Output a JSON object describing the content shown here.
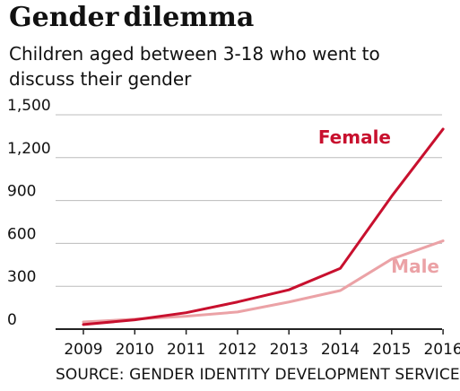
{
  "header": {
    "title_part1": "Gender",
    "title_part2": "dilemma",
    "subtitle": "Children aged between 3-18 who went to\ndiscuss their gender"
  },
  "footer": {
    "source": "SOURCE: GENDER IDENTITY DEVELOPMENT SERVICE"
  },
  "colors": {
    "female": "#c8102e",
    "male": "#eba2a6",
    "grid": "#bcbcbc",
    "axis": "#222222"
  },
  "chart_data": {
    "type": "line",
    "title": "Gender dilemma",
    "subtitle": "Children aged between 3-18 who went to discuss their gender",
    "xlabel": "",
    "ylabel": "",
    "x": [
      "2009",
      "2010",
      "2011",
      "2012",
      "2013",
      "2014",
      "2015",
      "2016"
    ],
    "ylim": [
      0,
      1500
    ],
    "yticks": [
      0,
      300,
      600,
      900,
      1200,
      1500
    ],
    "ytick_labels": [
      "0",
      "300",
      "600",
      "900",
      "1,200",
      "1,500"
    ],
    "grid": true,
    "series": [
      {
        "name": "Female",
        "values": [
          32,
          65,
          115,
          190,
          275,
          425,
          930,
          1400
        ]
      },
      {
        "name": "Male",
        "values": [
          50,
          70,
          90,
          120,
          190,
          270,
          490,
          618
        ]
      }
    ]
  }
}
